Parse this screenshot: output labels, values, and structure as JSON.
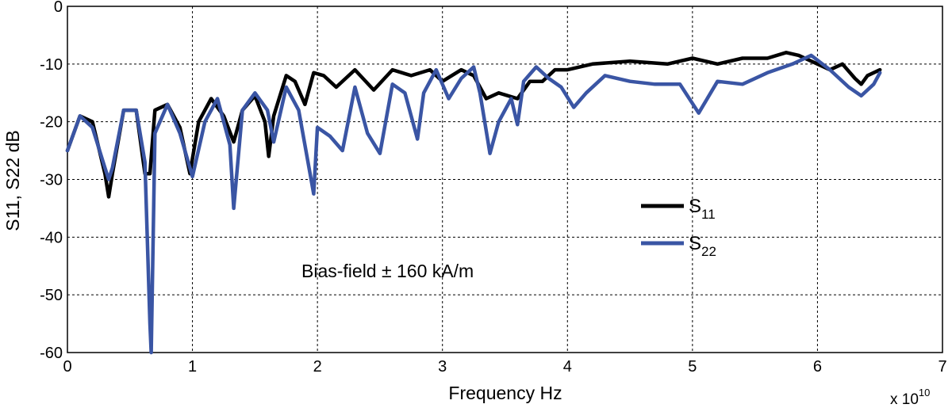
{
  "chart_data": {
    "type": "line",
    "xlabel": "Frequency Hz",
    "ylabel": "S11, S22 dB",
    "x_multiplier": {
      "base": "x 10",
      "exponent": "10"
    },
    "xlim": [
      0,
      7
    ],
    "ylim": [
      -60,
      0
    ],
    "x_ticks": [
      0,
      1,
      2,
      3,
      4,
      5,
      6,
      7
    ],
    "y_ticks": [
      0,
      -10,
      -20,
      -30,
      -40,
      -50,
      -60
    ],
    "grid": true,
    "legend_position": "right-center",
    "annotation": "Bias-field ± 160 kA/m",
    "series": [
      {
        "name": "S11",
        "legend_main": "S",
        "legend_sub": "11",
        "color": "#000000",
        "x": [
          0,
          0.1,
          0.2,
          0.3,
          0.33,
          0.36,
          0.45,
          0.55,
          0.62,
          0.66,
          0.7,
          0.8,
          0.9,
          0.98,
          1.05,
          1.15,
          1.25,
          1.33,
          1.4,
          1.5,
          1.58,
          1.61,
          1.65,
          1.75,
          1.82,
          1.9,
          1.97,
          2.05,
          2.15,
          2.3,
          2.45,
          2.6,
          2.75,
          2.9,
          3.0,
          3.15,
          3.25,
          3.35,
          3.45,
          3.6,
          3.7,
          3.8,
          3.9,
          4.0,
          4.2,
          4.5,
          4.8,
          5.0,
          5.2,
          5.4,
          5.6,
          5.75,
          5.85,
          6.0,
          6.1,
          6.2,
          6.3,
          6.35,
          6.4,
          6.5
        ],
        "y": [
          -25,
          -19,
          -20,
          -29,
          -33,
          -29,
          -18,
          -18,
          -29,
          -29,
          -18,
          -17,
          -21,
          -29,
          -20,
          -16,
          -19,
          -23.5,
          -18,
          -15.5,
          -20,
          -26,
          -19,
          -12,
          -13,
          -17,
          -11.5,
          -12,
          -14,
          -11,
          -14.5,
          -11,
          -12,
          -11,
          -13,
          -11,
          -12,
          -16,
          -15,
          -16,
          -13,
          -13,
          -11,
          -11,
          -10,
          -9.5,
          -10,
          -9,
          -10,
          -9,
          -9,
          -8,
          -8.5,
          -10,
          -11,
          -10,
          -12.5,
          -13.5,
          -12,
          -11
        ]
      },
      {
        "name": "S22",
        "legend_main": "S",
        "legend_sub": "22",
        "color": "#3a55a4",
        "x": [
          0,
          0.1,
          0.2,
          0.3,
          0.33,
          0.36,
          0.45,
          0.55,
          0.62,
          0.66,
          0.67,
          0.7,
          0.8,
          0.9,
          1.0,
          1.1,
          1.2,
          1.3,
          1.33,
          1.4,
          1.5,
          1.6,
          1.65,
          1.75,
          1.85,
          1.97,
          2.0,
          2.1,
          2.2,
          2.3,
          2.4,
          2.5,
          2.6,
          2.7,
          2.8,
          2.85,
          2.95,
          3.05,
          3.15,
          3.25,
          3.3,
          3.38,
          3.45,
          3.55,
          3.6,
          3.65,
          3.75,
          3.85,
          3.95,
          4.05,
          4.15,
          4.3,
          4.5,
          4.7,
          4.9,
          5.05,
          5.2,
          5.4,
          5.6,
          5.8,
          5.95,
          6.1,
          6.25,
          6.35,
          6.45,
          6.5
        ],
        "y": [
          -25,
          -19,
          -21,
          -28,
          -30,
          -28,
          -18,
          -18,
          -27,
          -55,
          -60,
          -22,
          -17,
          -22,
          -29.5,
          -20,
          -16,
          -24,
          -35,
          -18,
          -15,
          -18,
          -23.5,
          -14,
          -18,
          -32.5,
          -21,
          -22.5,
          -25,
          -14,
          -22,
          -25.5,
          -13.5,
          -15,
          -23,
          -15,
          -11,
          -16,
          -12.5,
          -10.5,
          -15,
          -25.5,
          -20,
          -16,
          -20.5,
          -13,
          -10.5,
          -12.5,
          -14,
          -17.5,
          -15,
          -12,
          -13,
          -13.5,
          -13.5,
          -18.5,
          -13,
          -13.5,
          -11.5,
          -10,
          -8.5,
          -11,
          -14,
          -15.5,
          -13.5,
          -11.5
        ]
      }
    ]
  }
}
